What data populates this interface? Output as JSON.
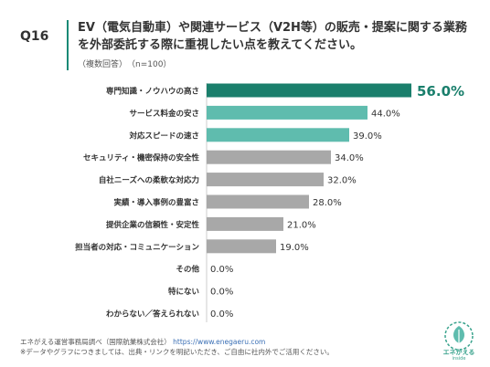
{
  "question_number": "Q16",
  "title_line1": "EV（電気自動車）や関連サービス（V2H等）の販売・提案に関する業務",
  "title_line2": "を外部委託する際に重視したい点を教えてください。",
  "subtitle": "（複数回答）　（n=100）",
  "footer": {
    "line1_text": "エネがえる運営事務局調べ（国際航業株式会社）",
    "line1_link": "https://www.enegaeru.com",
    "line2": "※データやグラフにつきましては、出典・リンクを明記いただき、ご自由に社内外でご活用ください。"
  },
  "logo": {
    "text": "エネがえる",
    "sub": "inside"
  },
  "colors": {
    "top": "#1a7f6c",
    "teal": "#5fbcae",
    "gray": "#a8a8a8",
    "top_label": "#1a7f6c"
  },
  "chart_data": {
    "type": "bar",
    "orientation": "horizontal",
    "categories": [
      "専門知識・ノウハウの高さ",
      "サービス料金の安さ",
      "対応スピードの速さ",
      "セキュリティ・機密保持の安全性",
      "自社ニーズへの柔軟な対応力",
      "実績・導入事例の豊富さ",
      "提供企業の信頼性・安定性",
      "担当者の対応・コミュニケーション",
      "その他",
      "特にない",
      "わからない／答えられない"
    ],
    "values": [
      56.0,
      44.0,
      39.0,
      34.0,
      32.0,
      28.0,
      21.0,
      19.0,
      0.0,
      0.0,
      0.0
    ],
    "value_labels": [
      "56.0%",
      "44.0%",
      "39.0%",
      "34.0%",
      "32.0%",
      "28.0%",
      "21.0%",
      "19.0%",
      "0.0%",
      "0.0%",
      "0.0%"
    ],
    "bar_color_groups": [
      "top",
      "teal",
      "teal",
      "gray",
      "gray",
      "gray",
      "gray",
      "gray",
      "gray",
      "gray",
      "gray"
    ],
    "xlim": [
      0,
      56
    ]
  }
}
